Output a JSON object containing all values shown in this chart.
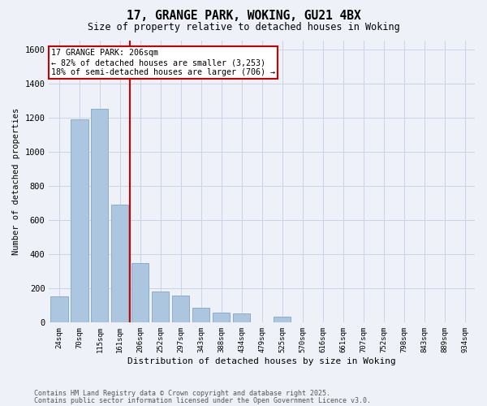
{
  "title1": "17, GRANGE PARK, WOKING, GU21 4BX",
  "title2": "Size of property relative to detached houses in Woking",
  "xlabel": "Distribution of detached houses by size in Woking",
  "ylabel": "Number of detached properties",
  "categories": [
    "24sqm",
    "70sqm",
    "115sqm",
    "161sqm",
    "206sqm",
    "252sqm",
    "297sqm",
    "343sqm",
    "388sqm",
    "434sqm",
    "479sqm",
    "525sqm",
    "570sqm",
    "616sqm",
    "661sqm",
    "707sqm",
    "752sqm",
    "798sqm",
    "843sqm",
    "889sqm",
    "934sqm"
  ],
  "values": [
    155,
    1190,
    1250,
    690,
    350,
    180,
    160,
    85,
    60,
    55,
    0,
    35,
    0,
    0,
    0,
    0,
    0,
    0,
    0,
    0,
    0
  ],
  "bar_color": "#adc6e0",
  "bar_edge_color": "#88aece",
  "vline_color": "#cc0000",
  "annotation_text": "17 GRANGE PARK: 206sqm\n← 82% of detached houses are smaller (3,253)\n18% of semi-detached houses are larger (706) →",
  "annotation_box_facecolor": "#ffffff",
  "annotation_box_edgecolor": "#cc0000",
  "ylim": [
    0,
    1650
  ],
  "yticks": [
    0,
    200,
    400,
    600,
    800,
    1000,
    1200,
    1400,
    1600
  ],
  "grid_color": "#c8d4e8",
  "background_color": "#eef2f8",
  "footer1": "Contains HM Land Registry data © Crown copyright and database right 2025.",
  "footer2": "Contains public sector information licensed under the Open Government Licence v3.0."
}
